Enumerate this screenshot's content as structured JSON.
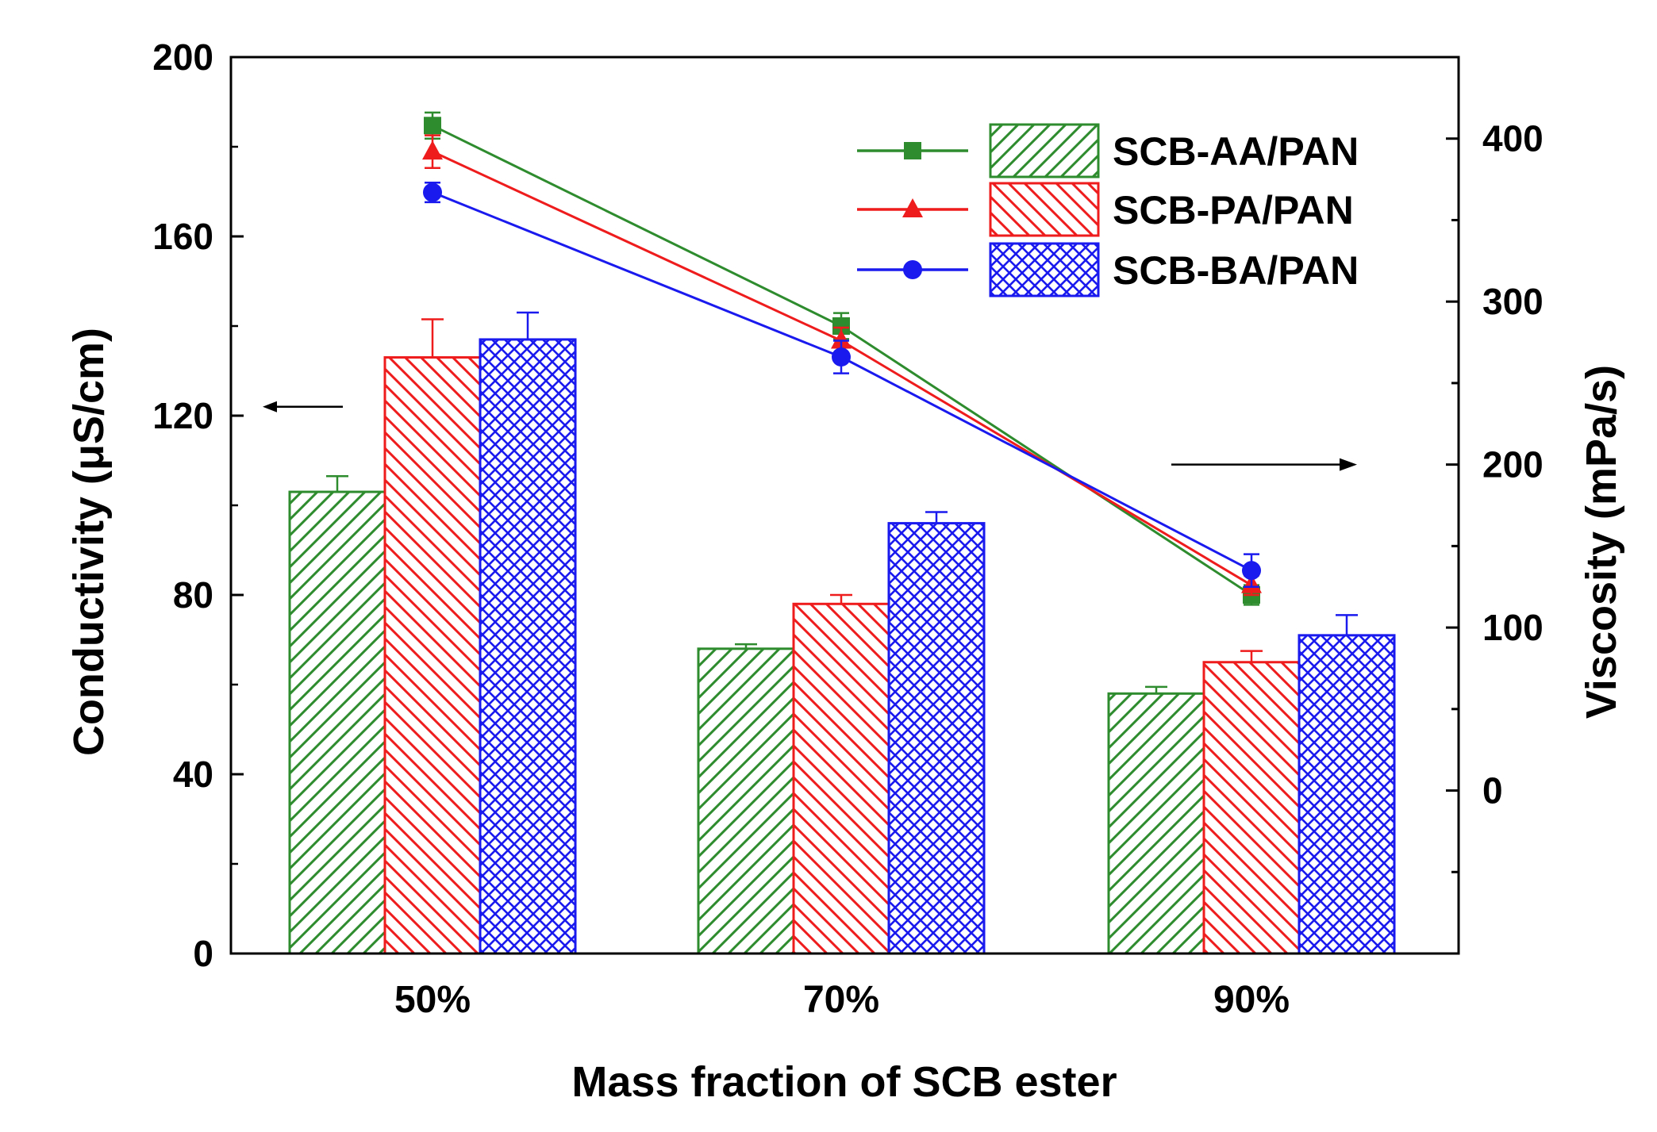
{
  "chart_data": {
    "type": "bar",
    "xlabel": "Mass fraction of SCB ester",
    "ylabel": "Conductivity (μS/cm)",
    "y2label": "Viscosity (mPa/s)",
    "categories": [
      "50%",
      "70%",
      "90%"
    ],
    "ylim": [
      0,
      200
    ],
    "y2lim": [
      -100,
      450
    ],
    "yticks": [
      0,
      40,
      80,
      120,
      160,
      200
    ],
    "y2ticks": [
      0,
      100,
      200,
      300,
      400
    ],
    "legend_position": "top-right",
    "colors": {
      "AA": "#2e8b2e",
      "PA": "#ee1c1c",
      "BA": "#1a1aee"
    },
    "bar_series": [
      {
        "name": "SCB-AA/PAN",
        "key": "AA",
        "values": [
          103,
          68,
          58
        ],
        "errors": [
          3.5,
          1.0,
          1.5
        ]
      },
      {
        "name": "SCB-PA/PAN",
        "key": "PA",
        "values": [
          133,
          78,
          65
        ],
        "errors": [
          8.5,
          2.0,
          2.5
        ]
      },
      {
        "name": "SCB-BA/PAN",
        "key": "BA",
        "values": [
          137,
          96,
          71
        ],
        "errors": [
          6.0,
          2.5,
          4.5
        ]
      }
    ],
    "line_series": [
      {
        "name": "SCB-AA/PAN",
        "key": "AA",
        "marker": "square",
        "values": [
          408,
          285,
          120
        ],
        "errors": [
          8,
          8,
          6
        ]
      },
      {
        "name": "SCB-PA/PAN",
        "key": "PA",
        "marker": "triangle",
        "values": [
          392,
          276,
          126
        ],
        "errors": [
          10,
          8,
          6
        ]
      },
      {
        "name": "SCB-BA/PAN",
        "key": "BA",
        "marker": "circle",
        "values": [
          367,
          266,
          135
        ],
        "errors": [
          6,
          10,
          10
        ]
      }
    ],
    "annotations": [
      {
        "type": "arrow",
        "direction": "left",
        "axis": "left"
      },
      {
        "type": "arrow",
        "direction": "right",
        "axis": "right"
      }
    ]
  }
}
